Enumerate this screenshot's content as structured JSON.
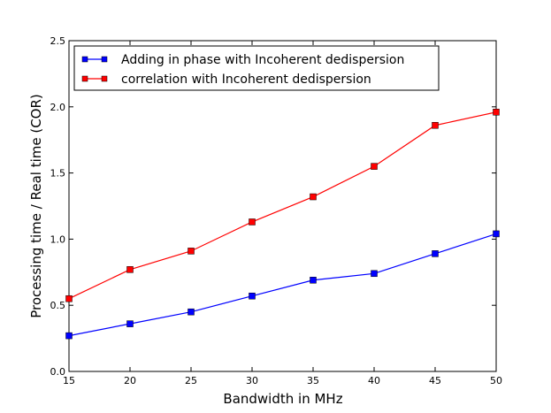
{
  "chart_data": {
    "type": "line",
    "title": "",
    "xlabel": "Bandwidth in MHz",
    "ylabel": "Processing time / Real time (COR)",
    "xlim": [
      15,
      50
    ],
    "ylim": [
      0.0,
      2.5
    ],
    "x": [
      15,
      20,
      25,
      30,
      35,
      40,
      45,
      50
    ],
    "xticks": [
      15,
      20,
      25,
      30,
      35,
      40,
      45,
      50
    ],
    "yticks": [
      0.0,
      0.5,
      1.0,
      1.5,
      2.0,
      2.5
    ],
    "xtick_labels": [
      "15",
      "20",
      "25",
      "30",
      "35",
      "40",
      "45",
      "50"
    ],
    "ytick_labels": [
      "0.0",
      "0.5",
      "1.0",
      "1.5",
      "2.0",
      "2.5"
    ],
    "grid": false,
    "legend_position": "top-left",
    "series": [
      {
        "name": "Adding in phase with Incoherent dedispersion",
        "color": "#0000ff",
        "marker": "square",
        "values": [
          0.27,
          0.36,
          0.45,
          0.57,
          0.69,
          0.74,
          0.89,
          1.04
        ]
      },
      {
        "name": "correlation with Incoherent dedispersion",
        "color": "#ff0000",
        "marker": "square",
        "values": [
          0.55,
          0.77,
          0.91,
          1.13,
          1.32,
          1.55,
          1.86,
          1.96
        ]
      }
    ]
  }
}
